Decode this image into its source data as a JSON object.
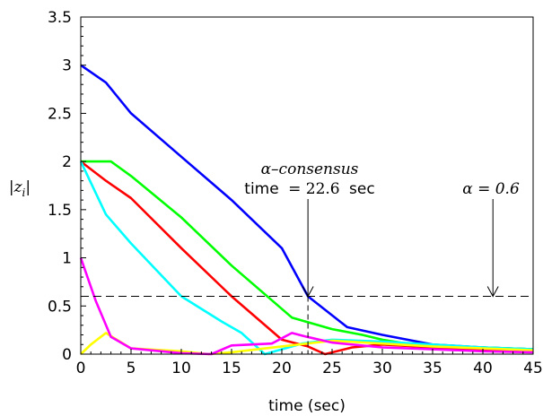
{
  "chart_data": {
    "type": "line",
    "xlabel": "time (sec)",
    "ylabel": "|z_i|",
    "xlim": [
      0,
      45
    ],
    "ylim": [
      0,
      3.5
    ],
    "xticks": [
      "0",
      "5",
      "10",
      "15",
      "20",
      "25",
      "30",
      "35",
      "40",
      "45"
    ],
    "yticks": [
      "0",
      "0.5",
      "1",
      "1.5",
      "2",
      "2.5",
      "3",
      "3.5"
    ],
    "grid": false,
    "threshold": {
      "value": 0.6,
      "style": "dashed"
    },
    "annotations": {
      "consensus_line1": "α–consensus",
      "consensus_time_word": "time",
      "consensus_eq": "= 22.6",
      "consensus_unit": "sec",
      "consensus_x": 22.6,
      "alpha_label": "α = 0.6",
      "alpha_x": 41
    },
    "series": [
      {
        "color": "#0000ff",
        "x": [
          0,
          2.5,
          5,
          10,
          15,
          20,
          22.6,
          26.5,
          30,
          35,
          40,
          45
        ],
        "y": [
          3.0,
          2.82,
          2.5,
          2.05,
          1.6,
          1.1,
          0.6,
          0.28,
          0.2,
          0.1,
          0.07,
          0.05
        ]
      },
      {
        "color": "#00ff00",
        "x": [
          0,
          3,
          5,
          10,
          15,
          21,
          25,
          28,
          30,
          33,
          35,
          40,
          45
        ],
        "y": [
          2.0,
          2.0,
          1.85,
          1.42,
          0.92,
          0.38,
          0.26,
          0.2,
          0.15,
          0.1,
          0.09,
          0.07,
          0.05
        ]
      },
      {
        "color": "#ff0000",
        "x": [
          0,
          2.5,
          5,
          10,
          15,
          20,
          22.6,
          24.3,
          27,
          30,
          35,
          40,
          45
        ],
        "y": [
          2.0,
          1.8,
          1.62,
          1.1,
          0.6,
          0.15,
          0.08,
          0.0,
          0.07,
          0.1,
          0.07,
          0.05,
          0.04
        ]
      },
      {
        "color": "#00ffff",
        "x": [
          0,
          2.5,
          5,
          10,
          14,
          16,
          18.3,
          22,
          25,
          30,
          35,
          40,
          45
        ],
        "y": [
          2.0,
          1.45,
          1.15,
          0.6,
          0.34,
          0.22,
          0.0,
          0.11,
          0.15,
          0.13,
          0.1,
          0.07,
          0.05
        ]
      },
      {
        "color": "#ffff00",
        "x": [
          0,
          1,
          2.5,
          5,
          10,
          12.7,
          15,
          20,
          25,
          30,
          35,
          40,
          45
        ],
        "y": [
          0.0,
          0.1,
          0.22,
          0.06,
          0.03,
          0.0,
          0.02,
          0.08,
          0.14,
          0.11,
          0.08,
          0.06,
          0.04
        ]
      },
      {
        "color": "#ff00ff",
        "x": [
          0,
          1.5,
          3,
          5,
          10,
          13,
          15,
          19,
          21,
          22.5,
          25,
          30,
          35,
          40,
          45
        ],
        "y": [
          1.0,
          0.55,
          0.18,
          0.06,
          0.01,
          0.0,
          0.09,
          0.11,
          0.22,
          0.18,
          0.12,
          0.07,
          0.05,
          0.03,
          0.02
        ]
      }
    ]
  }
}
